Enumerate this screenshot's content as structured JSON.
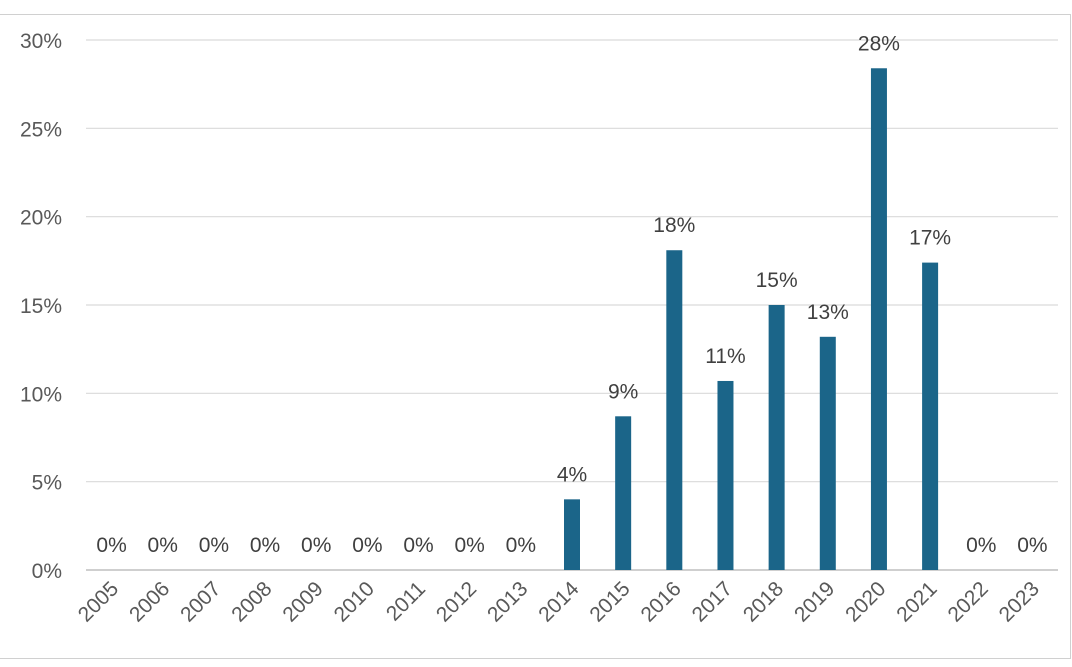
{
  "chart_data": {
    "type": "bar",
    "categories": [
      "2005",
      "2006",
      "2007",
      "2008",
      "2009",
      "2010",
      "2011",
      "2012",
      "2013",
      "2014",
      "2015",
      "2016",
      "2017",
      "2018",
      "2019",
      "2020",
      "2021",
      "2022",
      "2023"
    ],
    "values": [
      0,
      0,
      0,
      0,
      0,
      0,
      0,
      0,
      0,
      4,
      8.7,
      18.1,
      10.7,
      15,
      13.2,
      28.4,
      17.4,
      0,
      0
    ],
    "data_labels": [
      "0%",
      "0%",
      "0%",
      "0%",
      "0%",
      "0%",
      "0%",
      "0%",
      "0%",
      "4%",
      "9%",
      "18%",
      "11%",
      "15%",
      "13%",
      "28%",
      "17%",
      "0%",
      "0%"
    ],
    "y_ticks": [
      "0%",
      "5%",
      "10%",
      "15%",
      "20%",
      "25%",
      "30%"
    ],
    "ylim": [
      0,
      30
    ],
    "title": "",
    "xlabel": "",
    "ylabel": "",
    "grid": true,
    "bar_color": "#1b6589",
    "grid_color": "#d9d9d9",
    "text_color": "#595959"
  }
}
